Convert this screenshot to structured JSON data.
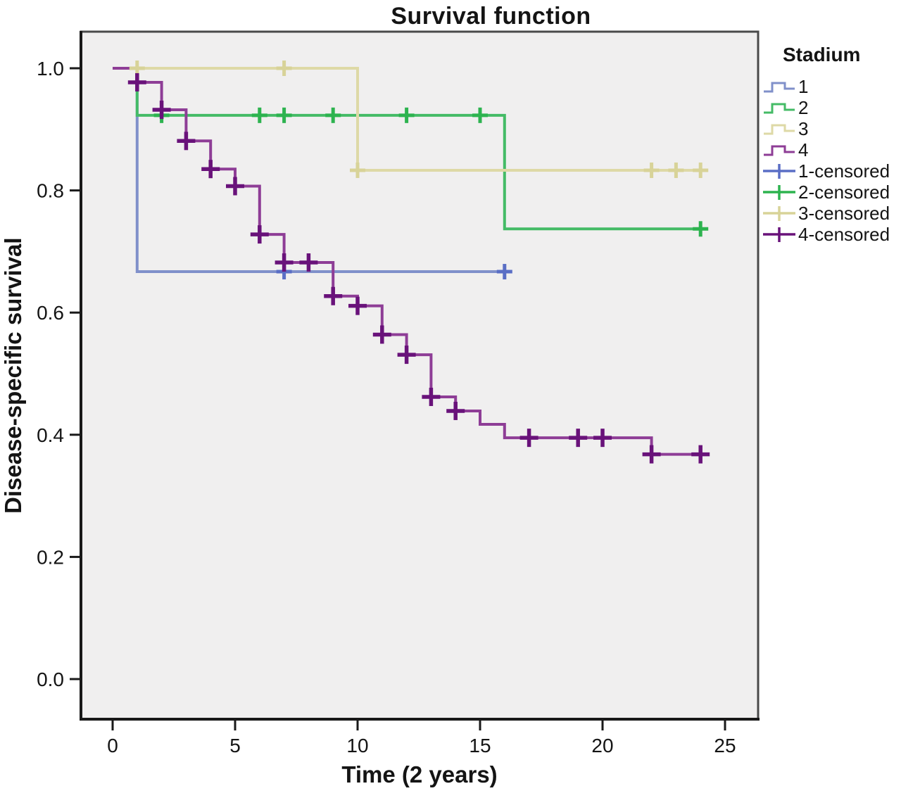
{
  "chart": {
    "title": "Survival function",
    "x_label": "Time (2 years)",
    "y_label": "Disease-specific survival"
  },
  "legend": {
    "title": "Stadium",
    "items": [
      {
        "label": "1",
        "series": 0,
        "type": "line"
      },
      {
        "label": "2",
        "series": 1,
        "type": "line"
      },
      {
        "label": "3",
        "series": 2,
        "type": "line"
      },
      {
        "label": "4",
        "series": 3,
        "type": "line"
      },
      {
        "label": "1-censored",
        "series": 0,
        "type": "censored"
      },
      {
        "label": "2-censored",
        "series": 1,
        "type": "censored"
      },
      {
        "label": "3-censored",
        "series": 2,
        "type": "censored"
      },
      {
        "label": "4-censored",
        "series": 3,
        "type": "censored"
      }
    ]
  },
  "chart_data": {
    "type": "line",
    "subtype": "kaplan-meier-step",
    "title": "Survival function",
    "xlabel": "Time (2 years)",
    "ylabel": "Disease-specific survival",
    "xlim": [
      0,
      25
    ],
    "ylim": [
      0.0,
      1.0
    ],
    "x_ticks": [
      0,
      5,
      10,
      15,
      20,
      25
    ],
    "y_ticks": [
      1.0,
      0.8,
      0.6,
      0.4,
      0.2,
      0.0
    ],
    "grid": false,
    "legend_position": "right-top",
    "plot_bg": "#f0efef",
    "series": [
      {
        "name": "1",
        "color": "#8090ca",
        "censor_color": "#5a6ec5",
        "steps": [
          [
            0,
            1.0
          ],
          [
            1,
            0.667
          ],
          [
            16,
            0.667
          ]
        ],
        "censors": [
          [
            7,
            0.667
          ],
          [
            16,
            0.667
          ]
        ]
      },
      {
        "name": "2",
        "color": "#44bb66",
        "censor_color": "#2db34f",
        "steps": [
          [
            0,
            1.0
          ],
          [
            1,
            0.923
          ],
          [
            16,
            0.737
          ],
          [
            24,
            0.737
          ]
        ],
        "censors": [
          [
            2,
            0.923
          ],
          [
            6,
            0.923
          ],
          [
            7,
            0.923
          ],
          [
            9,
            0.923
          ],
          [
            12,
            0.923
          ],
          [
            15,
            0.923
          ],
          [
            24,
            0.737
          ]
        ]
      },
      {
        "name": "3",
        "color": "#ded9a6",
        "censor_color": "#d8d398",
        "steps": [
          [
            0,
            1.0
          ],
          [
            10,
            0.833
          ],
          [
            24,
            0.833
          ]
        ],
        "censors": [
          [
            1,
            1.0
          ],
          [
            7,
            1.0
          ],
          [
            10,
            0.833
          ],
          [
            22,
            0.833
          ],
          [
            23,
            0.833
          ],
          [
            24,
            0.833
          ]
        ]
      },
      {
        "name": "4",
        "color": "#8e3d96",
        "censor_color": "#69127a",
        "steps": [
          [
            0,
            1.0
          ],
          [
            1,
            0.977
          ],
          [
            2,
            0.932
          ],
          [
            3,
            0.881
          ],
          [
            4,
            0.835
          ],
          [
            5,
            0.807
          ],
          [
            6,
            0.728
          ],
          [
            7,
            0.682
          ],
          [
            9,
            0.627
          ],
          [
            10,
            0.611
          ],
          [
            11,
            0.564
          ],
          [
            12,
            0.531
          ],
          [
            13,
            0.462
          ],
          [
            14,
            0.439
          ],
          [
            15,
            0.417
          ],
          [
            16,
            0.395
          ],
          [
            22,
            0.368
          ],
          [
            24,
            0.368
          ]
        ],
        "censors": [
          [
            1,
            0.977
          ],
          [
            2,
            0.932
          ],
          [
            3,
            0.881
          ],
          [
            4,
            0.835
          ],
          [
            5,
            0.807
          ],
          [
            6,
            0.728
          ],
          [
            7,
            0.682
          ],
          [
            8,
            0.682
          ],
          [
            9,
            0.627
          ],
          [
            10,
            0.611
          ],
          [
            11,
            0.564
          ],
          [
            12,
            0.531
          ],
          [
            13,
            0.462
          ],
          [
            14,
            0.439
          ],
          [
            17,
            0.395
          ],
          [
            19,
            0.395
          ],
          [
            20,
            0.395
          ],
          [
            22,
            0.368
          ],
          [
            24,
            0.368
          ]
        ]
      }
    ]
  }
}
